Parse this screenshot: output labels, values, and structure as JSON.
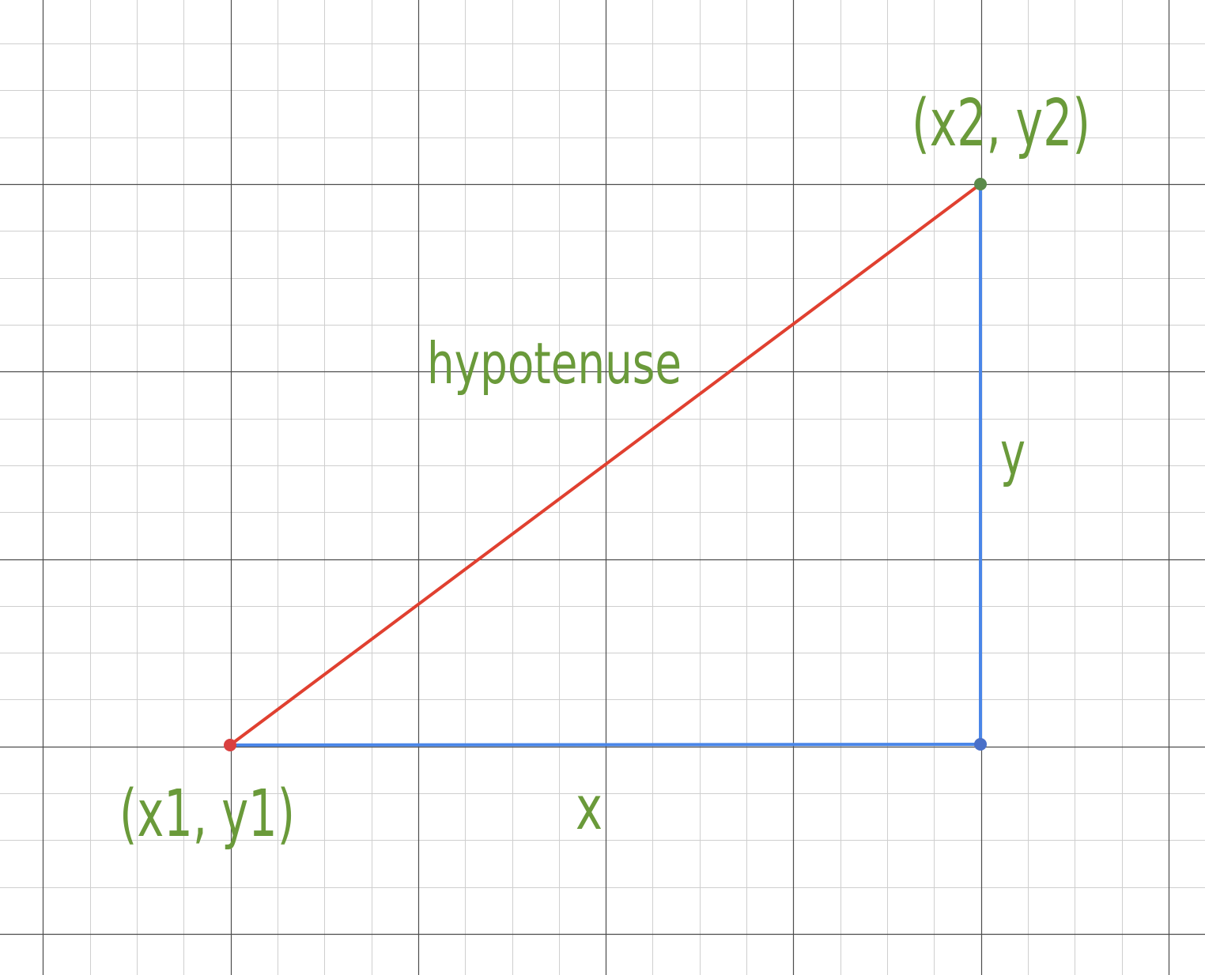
{
  "labels": {
    "point1": "(x1, y1)",
    "point2": "(x2, y2)",
    "hypotenuse": "hypotenuse",
    "leg_x": "x",
    "leg_y": "y"
  },
  "colors": {
    "label": "#6a9a3a",
    "hypotenuse": "#e04030",
    "legs": "#4a86e8",
    "point1": "#d94040",
    "point2": "#5b8a4a",
    "corner": "#4a70c8",
    "grid_major": "#4d4d4d",
    "grid_minor": "#cfcfcf",
    "background": "#ffffff"
  },
  "grid": {
    "visible": true
  }
}
